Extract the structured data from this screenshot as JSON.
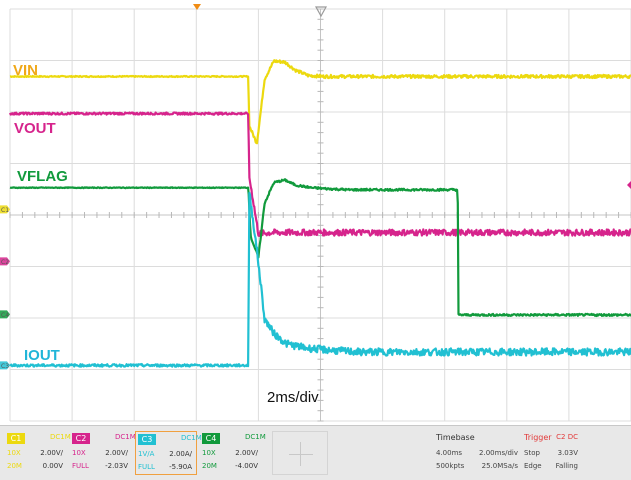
{
  "chart_data": {
    "type": "line",
    "title": "",
    "xlabel": "2ms/div",
    "x_unit": "ms",
    "x_divisions": 10,
    "y_divisions": 8,
    "xlim": [
      -7.7,
      12.3
    ],
    "trigger_time_ms": 0,
    "series": [
      {
        "name": "VIN",
        "color": "#ecd90f",
        "level_div": 6.69,
        "x": [
          -7.7,
          -0.02,
          0.0,
          0.25,
          0.5,
          0.8,
          1.15,
          1.5,
          1.9,
          2.4,
          3.2,
          12.3
        ],
        "y": [
          0,
          0,
          -0.95,
          -1.3,
          -0.05,
          0.3,
          0.28,
          0.12,
          0.02,
          0.0,
          0.0,
          0.0
        ],
        "noise": 0.03
      },
      {
        "name": "VOUT",
        "color": "#d6248c",
        "level_div": 5.97,
        "x": [
          -7.7,
          -0.02,
          0.0,
          0.3,
          0.8,
          12.3
        ],
        "y": [
          0,
          0,
          -1.2,
          -2.33,
          -2.31,
          -2.31
        ],
        "noise": 0.06
      },
      {
        "name": "VFLAG",
        "color": "#119a3c",
        "level_div": 4.53,
        "x": [
          -7.7,
          -0.02,
          0.05,
          0.3,
          0.5,
          0.8,
          1.15,
          1.5,
          2.0,
          2.5,
          3.2,
          6.72,
          6.74,
          12.3
        ],
        "y": [
          0,
          0,
          -0.95,
          -1.35,
          -0.3,
          0.1,
          0.15,
          0.05,
          0.0,
          -0.02,
          -0.04,
          -0.04,
          -2.47,
          -2.47
        ],
        "noise": 0.02
      },
      {
        "name": "IOUT",
        "color": "#21c0d2",
        "level_div": 1.08,
        "x": [
          -7.7,
          -0.02,
          0.0,
          0.25,
          0.5,
          0.8,
          1.2,
          1.8,
          2.5,
          3.5,
          12.3
        ],
        "y": [
          0,
          0,
          3.4,
          2.25,
          0.9,
          0.62,
          0.42,
          0.34,
          0.3,
          0.26,
          0.26
        ],
        "noise": 0.07
      }
    ],
    "channel_markers": [
      "C1",
      "C2",
      "C4",
      "C3"
    ],
    "markers": [
      {
        "level_div": 4.11,
        "label": "C1",
        "color": "#ecd90f"
      },
      {
        "level_div": 3.1,
        "label": "C2",
        "color": "#d6248c"
      },
      {
        "level_div": 2.07,
        "label": "C4",
        "color": "#119a3c"
      },
      {
        "level_div": 1.08,
        "label": "C3",
        "color": "#21c0d2"
      }
    ]
  },
  "labels": {
    "vin": "VIN",
    "vout": "VOUT",
    "vflag": "VFLAG",
    "iout": "IOUT",
    "timescale": "2ms/div"
  },
  "channels": [
    {
      "id": "C1",
      "coupling": "DC1M",
      "probe": "10X",
      "scale": "2.00V/",
      "bw": "20M",
      "offset": "0.00V",
      "color": "#ecd90f"
    },
    {
      "id": "C2",
      "coupling": "DC1M",
      "probe": "10X",
      "scale": "2.00V/",
      "bw": "FULL",
      "offset": "-2.03V",
      "color": "#d6248c"
    },
    {
      "id": "C3",
      "coupling": "DC1M",
      "probe": "1V/A",
      "scale": "2.00A/",
      "bw": "FULL",
      "offset": "-5.90A",
      "color": "#21c0d2"
    },
    {
      "id": "C4",
      "coupling": "DC1M",
      "probe": "10X",
      "scale": "2.00V/",
      "bw": "20M",
      "offset": "-4.00V",
      "color": "#119a3c"
    }
  ],
  "timebase": {
    "label": "Timebase",
    "delay": "4.00ms",
    "scale": "2.00ms/div",
    "points": "500kpts",
    "rate": "25.0MSa/s"
  },
  "trigger": {
    "label": "Trigger",
    "source": "C2 DC",
    "mode": "Stop",
    "level": "3.03V",
    "type": "Edge",
    "slope": "Falling"
  }
}
